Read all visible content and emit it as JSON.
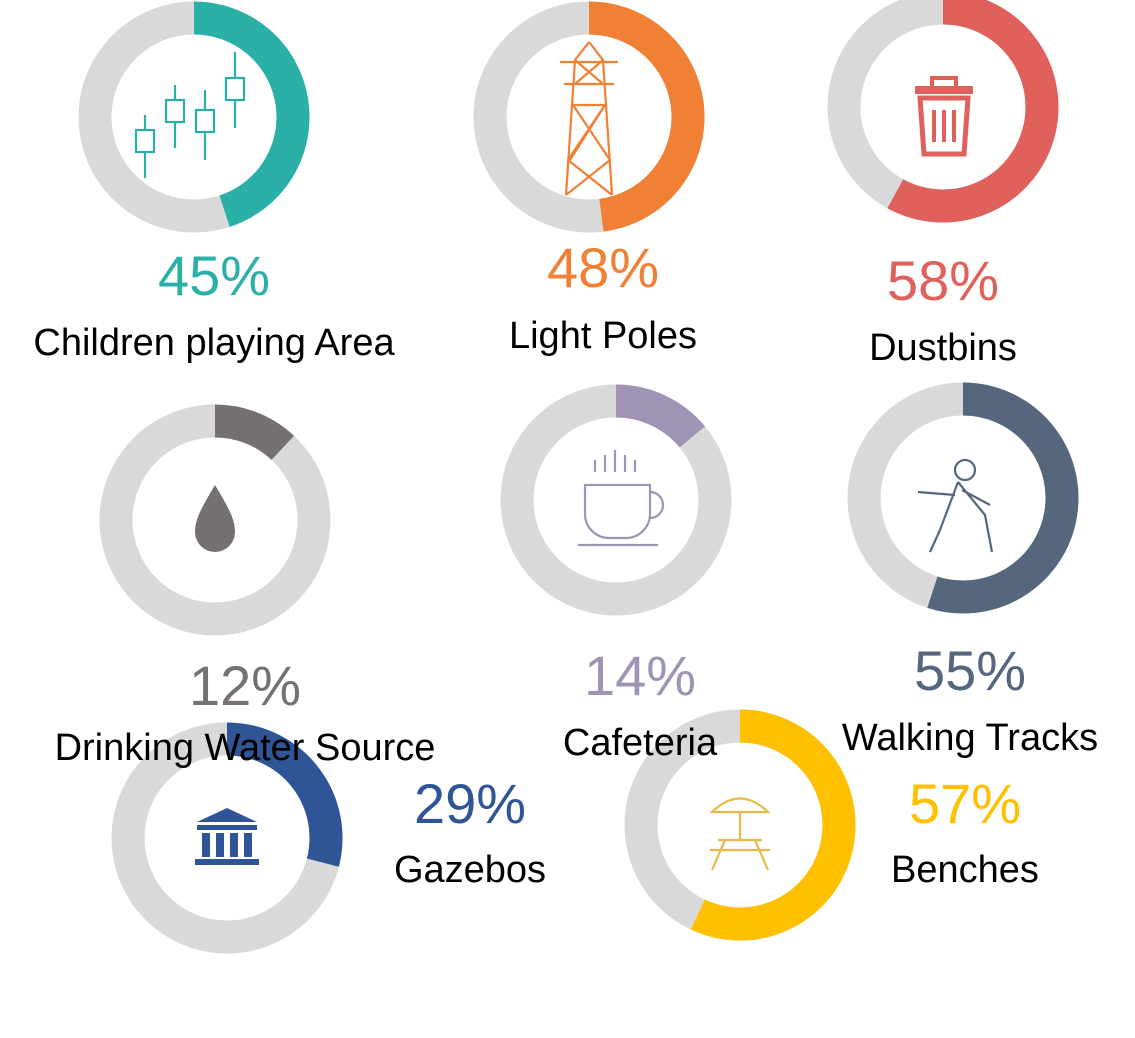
{
  "chart_data": [
    {
      "type": "donut",
      "categories": [
        "Children playing Area"
      ],
      "values": [
        45
      ],
      "value_labels": [
        "45%"
      ],
      "color": "#2bb0a8"
    },
    {
      "type": "donut",
      "categories": [
        "Light Poles"
      ],
      "values": [
        48
      ],
      "value_labels": [
        "48%"
      ],
      "color": "#ef8034"
    },
    {
      "type": "donut",
      "categories": [
        "Dustbins"
      ],
      "values": [
        58
      ],
      "value_labels": [
        "58%"
      ],
      "color": "#e0605c"
    },
    {
      "type": "donut",
      "categories": [
        "Drinking Water Source"
      ],
      "values": [
        12
      ],
      "value_labels": [
        "12%"
      ],
      "color": "#767171"
    },
    {
      "type": "donut",
      "categories": [
        "Cafeteria"
      ],
      "values": [
        14
      ],
      "value_labels": [
        "14%"
      ],
      "color": "#a094b4"
    },
    {
      "type": "donut",
      "categories": [
        "Walking Tracks"
      ],
      "values": [
        55
      ],
      "value_labels": [
        "55%"
      ],
      "color": "#56677d"
    },
    {
      "type": "donut",
      "categories": [
        "Gazebos"
      ],
      "values": [
        29
      ],
      "value_labels": [
        "29%"
      ],
      "color": "#2f5597"
    },
    {
      "type": "donut",
      "categories": [
        "Benches"
      ],
      "values": [
        57
      ],
      "value_labels": [
        "57%"
      ],
      "color": "#ffc000"
    }
  ]
}
